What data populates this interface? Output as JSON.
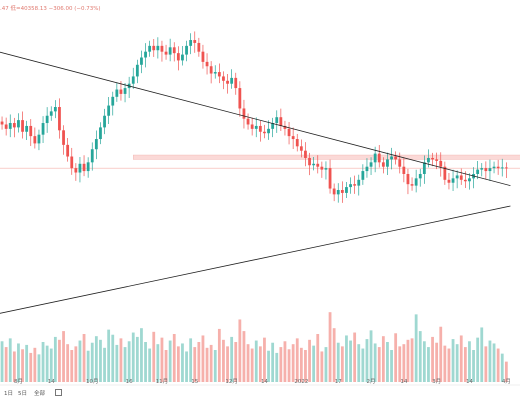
{
  "ohlc_text": ".47 低=40358.13 −306.00 (−0.73%)",
  "footer": {
    "tf1": "1日",
    "tf2": "5日",
    "all": "全部",
    "icon": "calendar-icon"
  },
  "colors": {
    "up": "#26a69a",
    "down": "#ef5350",
    "vol_up": "#9fd8d1",
    "vol_down": "#f6b0ab",
    "zone": "#fbd9d7",
    "trendline": "#222222",
    "price_line": "#f6b0ab"
  },
  "chart_data": {
    "type": "candlestick",
    "title": "",
    "x_tick_labels": [
      "8月",
      "14",
      "10月",
      "16",
      "11月",
      "15",
      "12月",
      "14",
      "2022",
      "17",
      "2月",
      "14",
      "3月",
      "14",
      "4月"
    ],
    "x_tick_positions_in_bars": [
      4,
      12,
      22,
      31,
      39,
      47,
      56,
      64,
      73,
      82,
      90,
      98,
      106,
      114,
      123
    ],
    "trendlines": [
      {
        "name": "descending",
        "start": {
          "bar": -1,
          "price": 47000
        },
        "end": {
          "bar": 124,
          "price": 37800
        }
      },
      {
        "name": "ascending",
        "start": {
          "bar": -1,
          "price": 29000
        },
        "end": {
          "bar": 124,
          "price": 36400
        }
      }
    ],
    "zone": {
      "from_bar": 32,
      "to_bar": 124,
      "low": 39600,
      "high": 39900
    },
    "close_series": [
      42000,
      41700,
      42100,
      41800,
      42300,
      41500,
      41900,
      41200,
      40700,
      41300,
      42100,
      42600,
      42900,
      43200,
      41600,
      40600,
      39800,
      39000,
      38700,
      39300,
      38800,
      39400,
      40300,
      41000,
      41800,
      42600,
      43300,
      43900,
      44400,
      44100,
      44500,
      44800,
      45300,
      46100,
      46600,
      47000,
      47400,
      47100,
      47400,
      47000,
      46800,
      47300,
      46900,
      46400,
      46800,
      47400,
      47800,
      47600,
      47000,
      46300,
      46000,
      45500,
      45600,
      45300,
      45000,
      44800,
      45200,
      44500,
      43100,
      42400,
      42000,
      41700,
      41900,
      41500,
      41400,
      41700,
      42100,
      42500,
      41900,
      41700,
      41200,
      41000,
      40500,
      40200,
      39700,
      39200,
      39300,
      39100,
      38900,
      39000,
      37600,
      37200,
      37500,
      37300,
      37700,
      37900,
      37800,
      38200,
      38800,
      39100,
      39400,
      40000,
      39400,
      39100,
      39600,
      39800,
      39600,
      39100,
      38600,
      37900,
      37800,
      38300,
      38600,
      39400,
      39700,
      39600,
      39500,
      39100,
      38200,
      38000,
      38300,
      38500,
      38200,
      38100,
      38300,
      38600,
      38900,
      39000,
      38800,
      39000,
      39100,
      39000,
      39050,
      39000
    ],
    "volumes": [
      56,
      48,
      60,
      42,
      53,
      45,
      51,
      40,
      47,
      38,
      55,
      50,
      46,
      62,
      58,
      70,
      52,
      44,
      49,
      57,
      66,
      43,
      54,
      63,
      58,
      47,
      72,
      65,
      51,
      60,
      48,
      56,
      68,
      62,
      74,
      55,
      46,
      69,
      52,
      61,
      44,
      57,
      66,
      49,
      53,
      42,
      60,
      48,
      55,
      64,
      47,
      51,
      44,
      73,
      58,
      49,
      62,
      55,
      86,
      70,
      52,
      46,
      57,
      49,
      61,
      43,
      54,
      40,
      48,
      56,
      45,
      52,
      60,
      47,
      44,
      58,
      50,
      66,
      42,
      48,
      96,
      74,
      54,
      49,
      64,
      57,
      68,
      52,
      46,
      59,
      71,
      53,
      48,
      63,
      55,
      44,
      67,
      49,
      52,
      58,
      60,
      93,
      70,
      56,
      48,
      62,
      54,
      76,
      50,
      46,
      59,
      52,
      64,
      48,
      56,
      44,
      61,
      75,
      49,
      57,
      53,
      46,
      39,
      28
    ],
    "vol_ylim": [
      0,
      110
    ],
    "price_ylim": [
      25000,
      50000
    ]
  }
}
